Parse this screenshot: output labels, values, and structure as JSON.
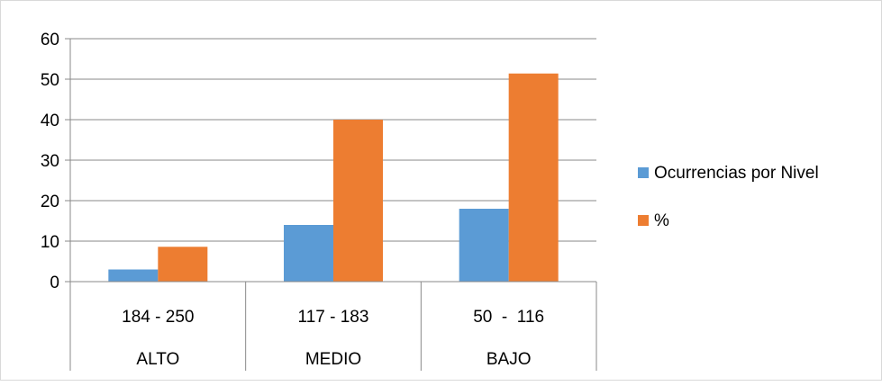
{
  "chart_data": {
    "type": "bar",
    "categories": [
      {
        "range": "184 - 250",
        "level": "ALTO"
      },
      {
        "range": "117 - 183",
        "level": "MEDIO"
      },
      {
        "range": "50  -  116",
        "level": "BAJO"
      }
    ],
    "series": [
      {
        "name": "Ocurrencias por Nivel",
        "values": [
          3,
          14,
          18
        ],
        "color": "#5b9bd5"
      },
      {
        "name": "%",
        "values": [
          8.6,
          40,
          51.4
        ],
        "color": "#ed7d31"
      }
    ],
    "y_ticks": [
      "0",
      "10",
      "20",
      "30",
      "40",
      "50",
      "60"
    ],
    "ylim": [
      0,
      60
    ],
    "grid": true,
    "legend_position": "right",
    "title": "",
    "xlabel": "",
    "ylabel": ""
  }
}
